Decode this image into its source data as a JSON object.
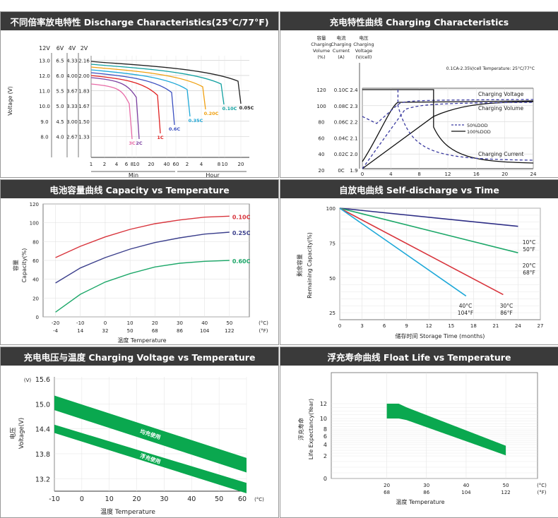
{
  "panels": {
    "discharge": {
      "title": "不同倍率放电特性 Discharge Characteristics(25°C/77°F)",
      "chart_data": {
        "type": "line",
        "title": "不同倍率放电特性 Discharge Characteristics(25°C/77°F)",
        "y_column_headers": [
          "12V",
          "6V",
          "4V",
          "2V"
        ],
        "y_columns": [
          [
            "13.0",
            "12.0",
            "11.0",
            "10.0",
            "9.0",
            "8.0"
          ],
          [
            "6.5",
            "6.0",
            "5.5",
            "5.0",
            "4.5",
            "4.0"
          ],
          [
            "4.33",
            "4.00",
            "3.67",
            "3.33",
            "3.00",
            "2.67"
          ],
          [
            "2.16",
            "2.00",
            "1.83",
            "1.67",
            "1.50",
            "1.33"
          ]
        ],
        "ylabel": "Voltage (V)",
        "xticks": [
          "1",
          "2",
          "4",
          "6",
          "8",
          "10",
          "20",
          "40",
          "60",
          "2",
          "4",
          "8",
          "10",
          "20"
        ],
        "xgroups": [
          "Min",
          "Hour"
        ],
        "xlabel": "放电时间 Discharging  Time",
        "series": [
          {
            "name": "3C",
            "color": "#e86aa6"
          },
          {
            "name": "2C",
            "color": "#7b3fa0"
          },
          {
            "name": "1C",
            "color": "#e02020"
          },
          {
            "name": "0.6C",
            "color": "#3a4fc0"
          },
          {
            "name": "0.35C",
            "color": "#1ea8d8"
          },
          {
            "name": "0.20C",
            "color": "#f0a010"
          },
          {
            "name": "0.10C",
            "color": "#10a0a0"
          },
          {
            "name": "0.05C",
            "color": "#222222"
          }
        ]
      }
    },
    "charging": {
      "title": "充电特性曲线 Charging Characteristics",
      "chart_data": {
        "type": "line",
        "col_headers": [
          "容量\nCharging\nVolume\n(%)",
          "电流\nCharging\nCurrent\n(A)",
          "电压\nCharging\nVoltage\n(V/cell)"
        ],
        "volume_ticks": [
          "120",
          "100",
          "80",
          "60",
          "40",
          "20"
        ],
        "current_ticks": [
          "0.10C",
          "0.08C",
          "0.06C",
          "0.04C",
          "0.02C",
          "0C"
        ],
        "voltage_ticks": [
          "2.4",
          "2.3",
          "2.2",
          "2.1",
          "2.0",
          "1.9"
        ],
        "note": "0.1CA-2.35V/cell  Temperature: 25°C/77°C",
        "x": [
          0,
          4,
          8,
          12,
          16,
          20,
          24
        ],
        "xlabel": "充电时间 Charging Time(h)",
        "labels": [
          "Charging Voltage",
          "Charging Volume",
          "Charging Current"
        ],
        "legend": [
          "50%DOD",
          "100%DOD"
        ]
      }
    },
    "capacity": {
      "title": "电池容量曲线 Capacity vs Temperature",
      "chart_data": {
        "type": "line",
        "x_c": [
          -20,
          -10,
          0,
          10,
          20,
          30,
          40,
          50
        ],
        "x_f": [
          -4,
          14,
          32,
          50,
          68,
          86,
          104,
          122
        ],
        "unit_c": "(°C)",
        "unit_f": "(°F)",
        "ylim": [
          0,
          120
        ],
        "yticks": [
          0,
          20,
          40,
          60,
          80,
          100,
          120
        ],
        "ylabel": "容量\nCapacity(%)",
        "xlabel": "温度 Temperature",
        "series": [
          {
            "name": "0.10C",
            "color": "#d8343c",
            "x": [
              -20,
              -10,
              0,
              10,
              20,
              30,
              40,
              50
            ],
            "values": [
              63,
              75,
              85,
              93,
              99,
              103,
              106,
              107
            ]
          },
          {
            "name": "0.25C",
            "color": "#3b3f8c",
            "x": [
              -20,
              -10,
              0,
              10,
              20,
              30,
              40,
              50
            ],
            "values": [
              36,
              52,
              63,
              72,
              79,
              84,
              88,
              90
            ]
          },
          {
            "name": "0.60C",
            "color": "#1ea86a",
            "x": [
              -20,
              -10,
              0,
              10,
              20,
              30,
              40,
              50
            ],
            "values": [
              5,
              24,
              37,
              46,
              53,
              57,
              59,
              60
            ]
          }
        ]
      }
    },
    "self_discharge": {
      "title": "自放电曲线 Self-discharge vs Time",
      "chart_data": {
        "type": "line",
        "x": [
          0,
          3,
          6,
          9,
          12,
          15,
          18,
          21,
          24,
          27
        ],
        "yticks": [
          25,
          50,
          75,
          100
        ],
        "ylabel": "剩余容量\nRemaining Capacity(%)",
        "xlabel": "储存时间 Storage Time (months)",
        "series": [
          {
            "name": "10°C 50°F",
            "color": "#2e2e86",
            "x": [
              0,
              24
            ],
            "values": [
              100,
              87
            ]
          },
          {
            "name": "20°C 68°F",
            "color": "#1ea86a",
            "x": [
              0,
              24
            ],
            "values": [
              100,
              68
            ]
          },
          {
            "name": "30°C 86°F",
            "color": "#d8343c",
            "x": [
              0,
              22
            ],
            "values": [
              100,
              38
            ]
          },
          {
            "name": "40°C 104°F",
            "color": "#1ea8d8",
            "x": [
              0,
              17
            ],
            "values": [
              100,
              37
            ]
          }
        ],
        "series_labels": [
          [
            "10°C",
            "50°F"
          ],
          [
            "20°C",
            "68°F"
          ],
          [
            "30°C",
            "86°F"
          ],
          [
            "40°C",
            "104°F"
          ]
        ]
      }
    },
    "charging_voltage": {
      "title": "充电电压与温度  Charging Voltage vs Temperature",
      "chart_data": {
        "type": "area",
        "x": [
          -10,
          0,
          10,
          20,
          30,
          40,
          50,
          60
        ],
        "xunit": "(°C)",
        "yticks": [
          "13.2",
          "13.8",
          "14.4",
          "15.0",
          "15.6"
        ],
        "yunit": "(V)",
        "ylabel": "电压\nVoltage(V)",
        "xlabel": "温度 Temperature",
        "bands": [
          {
            "name": "均充使用",
            "x": [
              -10,
              60
            ],
            "upper": [
              15.2,
              13.7
            ],
            "lower": [
              14.85,
              13.35
            ]
          },
          {
            "name": "浮充使用",
            "x": [
              -10,
              60
            ],
            "upper": [
              14.5,
              13.1
            ],
            "lower": [
              14.3,
              12.85
            ]
          }
        ],
        "color": "#0aa84f"
      }
    },
    "float_life": {
      "title": "浮充寿命曲线 Float Life vs Temperature",
      "chart_data": {
        "type": "area",
        "yticks": [
          "0",
          "2",
          "4",
          "6",
          "8",
          "10",
          "12"
        ],
        "xticks_c": [
          "20",
          "30",
          "40",
          "50"
        ],
        "xticks_f": [
          "68",
          "86",
          "104",
          "122"
        ],
        "unit_c": "(°C)",
        "unit_f": "(°F)",
        "ylabel": "浮充寿命\nLife Expectancy(Year)",
        "xlabel": "温度 Temperature",
        "band": {
          "x": [
            20,
            23,
            25,
            50
          ],
          "upper": [
            12,
            12,
            11.5,
            3.8
          ],
          "lower": [
            10,
            10,
            9.7,
            2.1
          ]
        },
        "color": "#0aa84f"
      }
    }
  }
}
